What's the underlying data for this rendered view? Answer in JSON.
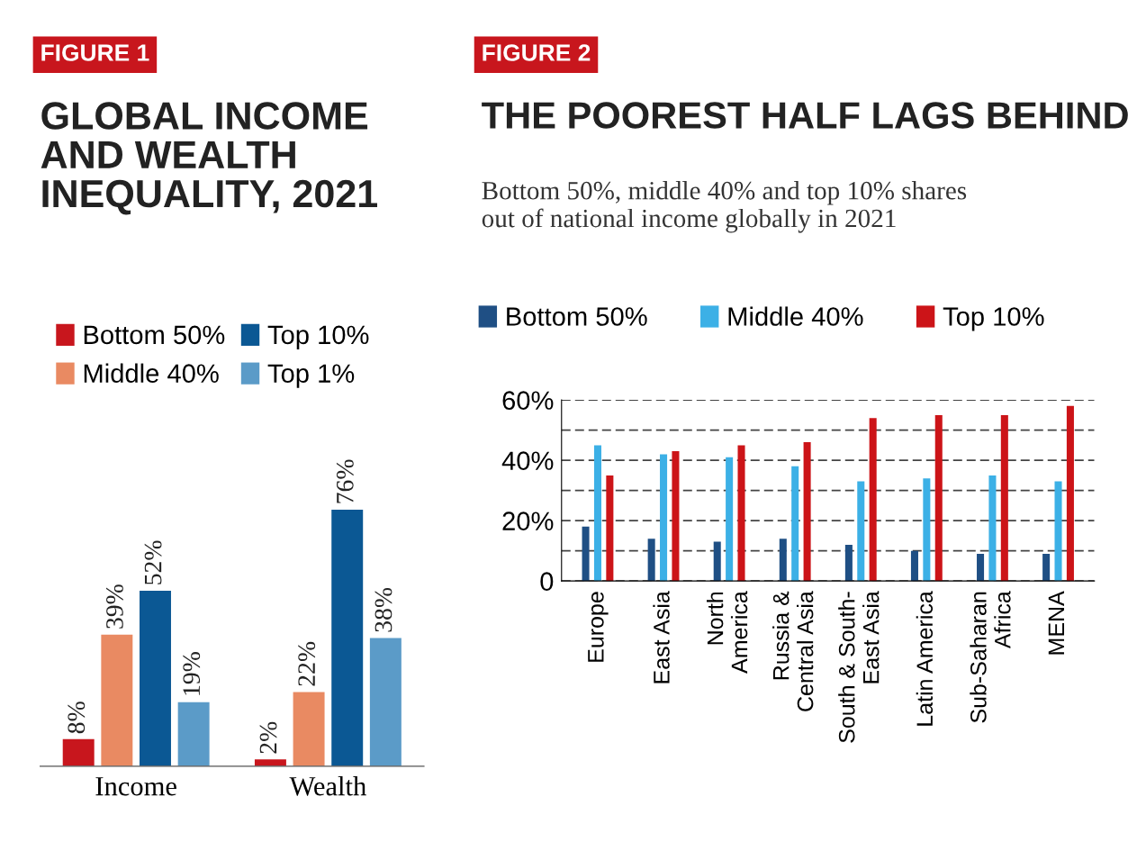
{
  "chart_data": [
    {
      "type": "bar",
      "title": "GLOBAL INCOME\nAND WEALTH\nINEQUALITY, 2021",
      "annotations": [
        "FIGURE 1"
      ],
      "categories": [
        "Income",
        "Wealth"
      ],
      "legend": "top left",
      "series": [
        {
          "name": "Bottom 50%",
          "color": "#c8161d",
          "values": [
            8,
            2
          ],
          "value_labels": [
            "8%",
            "2%"
          ]
        },
        {
          "name": "Middle 40%",
          "color": "#e98a62",
          "values": [
            39,
            22
          ],
          "value_labels": [
            "39%",
            "22%"
          ]
        },
        {
          "name": "Top 10%",
          "color": "#0b5894",
          "values": [
            52,
            76
          ],
          "value_labels": [
            "52%",
            "76%"
          ]
        },
        {
          "name": "Top 1%",
          "color": "#5b9bc8",
          "values": [
            19,
            38
          ],
          "value_labels": [
            "19%",
            "38%"
          ]
        }
      ]
    },
    {
      "type": "bar",
      "title": "THE POOREST HALF LAGS BEHIND",
      "subtitle": "Bottom 50%, middle 40% and top 10% shares\nout of national income globally in 2021",
      "annotations": [
        "FIGURE 2"
      ],
      "categories": [
        "Europe",
        "East Asia",
        "North\nAmerica",
        "Russia &\nCentral Asia",
        "South & South-\nEast Asia",
        "Latin America",
        "Sub-Saharan\nAfrica",
        "MENA"
      ],
      "legend": "top",
      "grid": "y",
      "ylim": [
        0,
        60
      ],
      "yticks": [
        {
          "value": 0,
          "label": "0"
        },
        {
          "value": 10,
          "label": null
        },
        {
          "value": 20,
          "label": "20%"
        },
        {
          "value": 30,
          "label": null
        },
        {
          "value": 40,
          "label": "40%"
        },
        {
          "value": 50,
          "label": null
        },
        {
          "value": 60,
          "label": "60%"
        }
      ],
      "series": [
        {
          "name": "Bottom 50%",
          "color": "#1f4f84",
          "values": [
            18,
            14,
            13,
            14,
            12,
            10,
            9,
            9
          ]
        },
        {
          "name": "Middle 40%",
          "color": "#3cb0e6",
          "values": [
            45,
            42,
            41,
            38,
            33,
            34,
            35,
            33
          ]
        },
        {
          "name": "Top 10%",
          "color": "#cc1418",
          "values": [
            35,
            43,
            45,
            46,
            54,
            55,
            55,
            58
          ]
        }
      ]
    }
  ]
}
